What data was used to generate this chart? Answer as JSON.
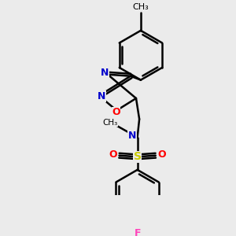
{
  "bg_color": "#ebebeb",
  "bond_color": "#000000",
  "N_color": "#0000cc",
  "O_color": "#ff0000",
  "S_color": "#cccc00",
  "F_color": "#ff44bb",
  "line_width": 1.8,
  "fig_width": 3.0,
  "fig_height": 3.0,
  "xlim": [
    0,
    300
  ],
  "ylim": [
    0,
    300
  ]
}
